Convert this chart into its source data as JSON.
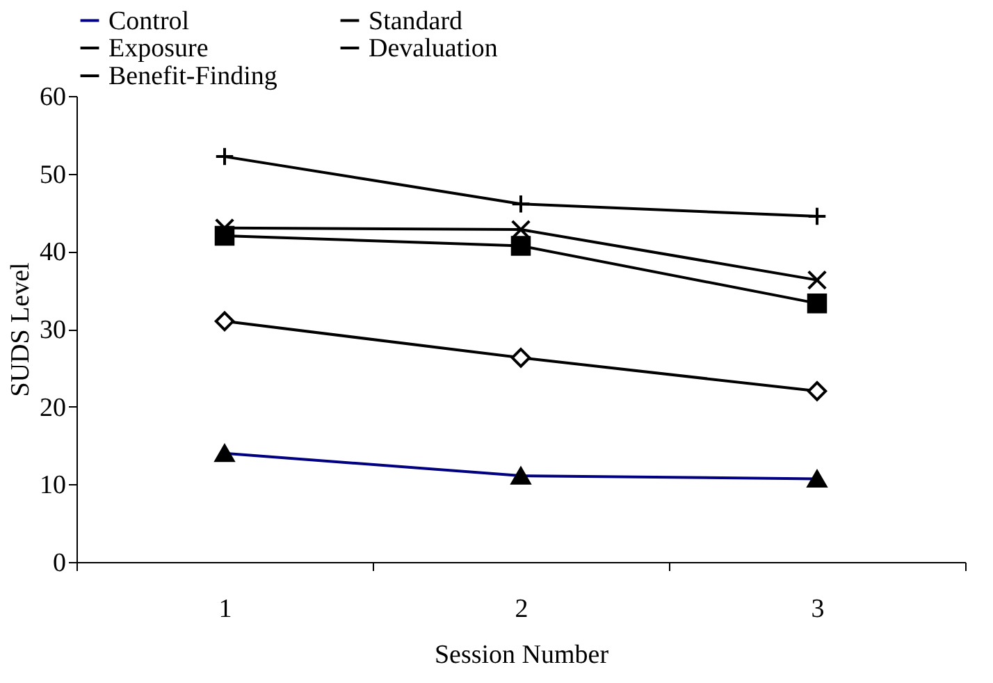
{
  "chart_data": {
    "type": "line",
    "xlabel": "Session Number",
    "ylabel": "SUDS Level",
    "categories": [
      "1",
      "2",
      "3"
    ],
    "ylim": [
      0,
      60
    ],
    "yticks": [
      0,
      10,
      20,
      30,
      40,
      50,
      60
    ],
    "grid": false,
    "legend": "top",
    "line_style": "solid",
    "series": [
      {
        "name": "Control",
        "color": "#000080",
        "marker": "triangle",
        "values": [
          14.0,
          11.1,
          10.7
        ]
      },
      {
        "name": "Standard",
        "color": "#000000",
        "marker": "square",
        "values": [
          42.0,
          40.7,
          33.3
        ]
      },
      {
        "name": "Exposure",
        "color": "#000000",
        "marker": "cross",
        "values": [
          52.2,
          46.1,
          44.5
        ]
      },
      {
        "name": "Devaluation",
        "color": "#000000",
        "marker": "x",
        "values": [
          43.0,
          42.8,
          36.3
        ]
      },
      {
        "name": "Benefit-Finding",
        "color": "#000000",
        "marker": "diamond",
        "values": [
          31.0,
          26.3,
          22.0
        ]
      }
    ]
  }
}
